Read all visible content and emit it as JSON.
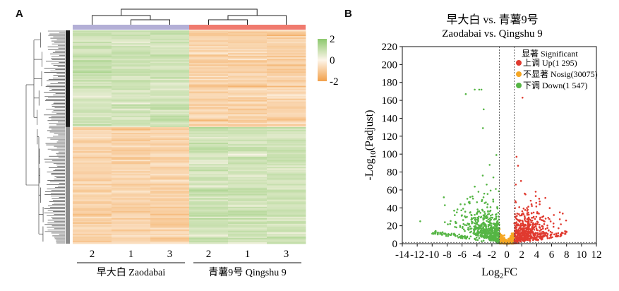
{
  "panels": {
    "a_label": "A",
    "b_label": "B"
  },
  "chart_data": [
    {
      "type": "heatmap",
      "panel": "A",
      "columns": [
        "2",
        "1",
        "3",
        "2",
        "1",
        "3"
      ],
      "column_groups": [
        {
          "name": "早大白 Zaodabai",
          "columns": [
            "2",
            "1",
            "3"
          ],
          "color": "#b3afd6"
        },
        {
          "name": "青薯9号 Qingshu 9",
          "columns": [
            "2",
            "1",
            "3"
          ],
          "color": "#f07a6e"
        }
      ],
      "row_clusters": [
        {
          "cluster": 1,
          "fraction_of_rows": 0.45,
          "color": "#1a1a1a",
          "pattern": {
            "Zaodabai": "high",
            "Qingshu 9": "low"
          }
        },
        {
          "cluster": 2,
          "fraction_of_rows": 0.55,
          "color": "#8a8a8a",
          "pattern": {
            "Zaodabai": "low",
            "Qingshu 9": "high"
          }
        }
      ],
      "color_scale": {
        "min": -2,
        "mid": 0,
        "max": 2,
        "min_color": "#f2a04a",
        "mid_color": "#fdf5ea",
        "max_color": "#8cc86d"
      },
      "legend_ticks": [
        "2",
        "0",
        "-2"
      ],
      "row_dendrogram": true,
      "column_dendrogram": true,
      "grid": false
    },
    {
      "type": "scatter",
      "panel": "B",
      "title_line1": "早大白 vs. 青薯9号",
      "title_line2": "Zaodabai vs. Qingshu 9",
      "xlabel": "Log2FC",
      "ylabel": "-Log10(Padjust)",
      "xlim": [
        -14,
        12
      ],
      "ylim": [
        0,
        220
      ],
      "xticks": [
        -14,
        -12,
        -10,
        -8,
        -6,
        -4,
        -2,
        0,
        2,
        4,
        6,
        8,
        10,
        12
      ],
      "yticks": [
        0,
        20,
        40,
        60,
        80,
        100,
        120,
        140,
        160,
        180,
        200,
        220
      ],
      "vlines": [
        -1,
        1
      ],
      "hline": 1.3,
      "legend": {
        "title": "显著 Significant",
        "position": "top-right",
        "entries": [
          {
            "label": "上调 Up(1 295)",
            "color": "#e03a2f",
            "count": 1295
          },
          {
            "label": "不显著 Nosig(30075)",
            "color": "#f5a623",
            "count": 30075
          },
          {
            "label": "下调 Down(1 547)",
            "color": "#55b544",
            "count": 1547
          }
        ]
      },
      "series": [
        {
          "name": "上调 Up",
          "points": [
            [
              2.1,
              163
            ],
            [
              1.3,
              97
            ],
            [
              1.5,
              87
            ],
            [
              1.9,
              70
            ],
            [
              2.5,
              55
            ],
            [
              3.2,
              48
            ],
            [
              4.4,
              44
            ],
            [
              7.1,
              35
            ],
            [
              6.3,
              32
            ],
            [
              5.2,
              28
            ],
            [
              7.8,
              14
            ],
            [
              8.0,
              13
            ],
            [
              1.2,
              66
            ],
            [
              2.8,
              38
            ],
            [
              3.6,
              30
            ]
          ]
        },
        {
          "name": "下调 Down",
          "points": [
            [
              -4.3,
              172
            ],
            [
              -3.4,
              172
            ],
            [
              -3.7,
              172
            ],
            [
              -5.5,
              167
            ],
            [
              -3.1,
              150
            ],
            [
              -3.2,
              129
            ],
            [
              -2.3,
              88
            ],
            [
              -1.8,
              74
            ],
            [
              -2.7,
              66
            ],
            [
              -3.8,
              58
            ],
            [
              -4.9,
              52
            ],
            [
              -6.2,
              44
            ],
            [
              -6.7,
              35
            ],
            [
              -8.3,
              24
            ],
            [
              -11.6,
              25
            ],
            [
              -9.6,
              11
            ],
            [
              -7.6,
              22
            ],
            [
              -1.4,
              99
            ]
          ]
        }
      ],
      "nosig_color": "#f5a623",
      "grid": false
    }
  ]
}
